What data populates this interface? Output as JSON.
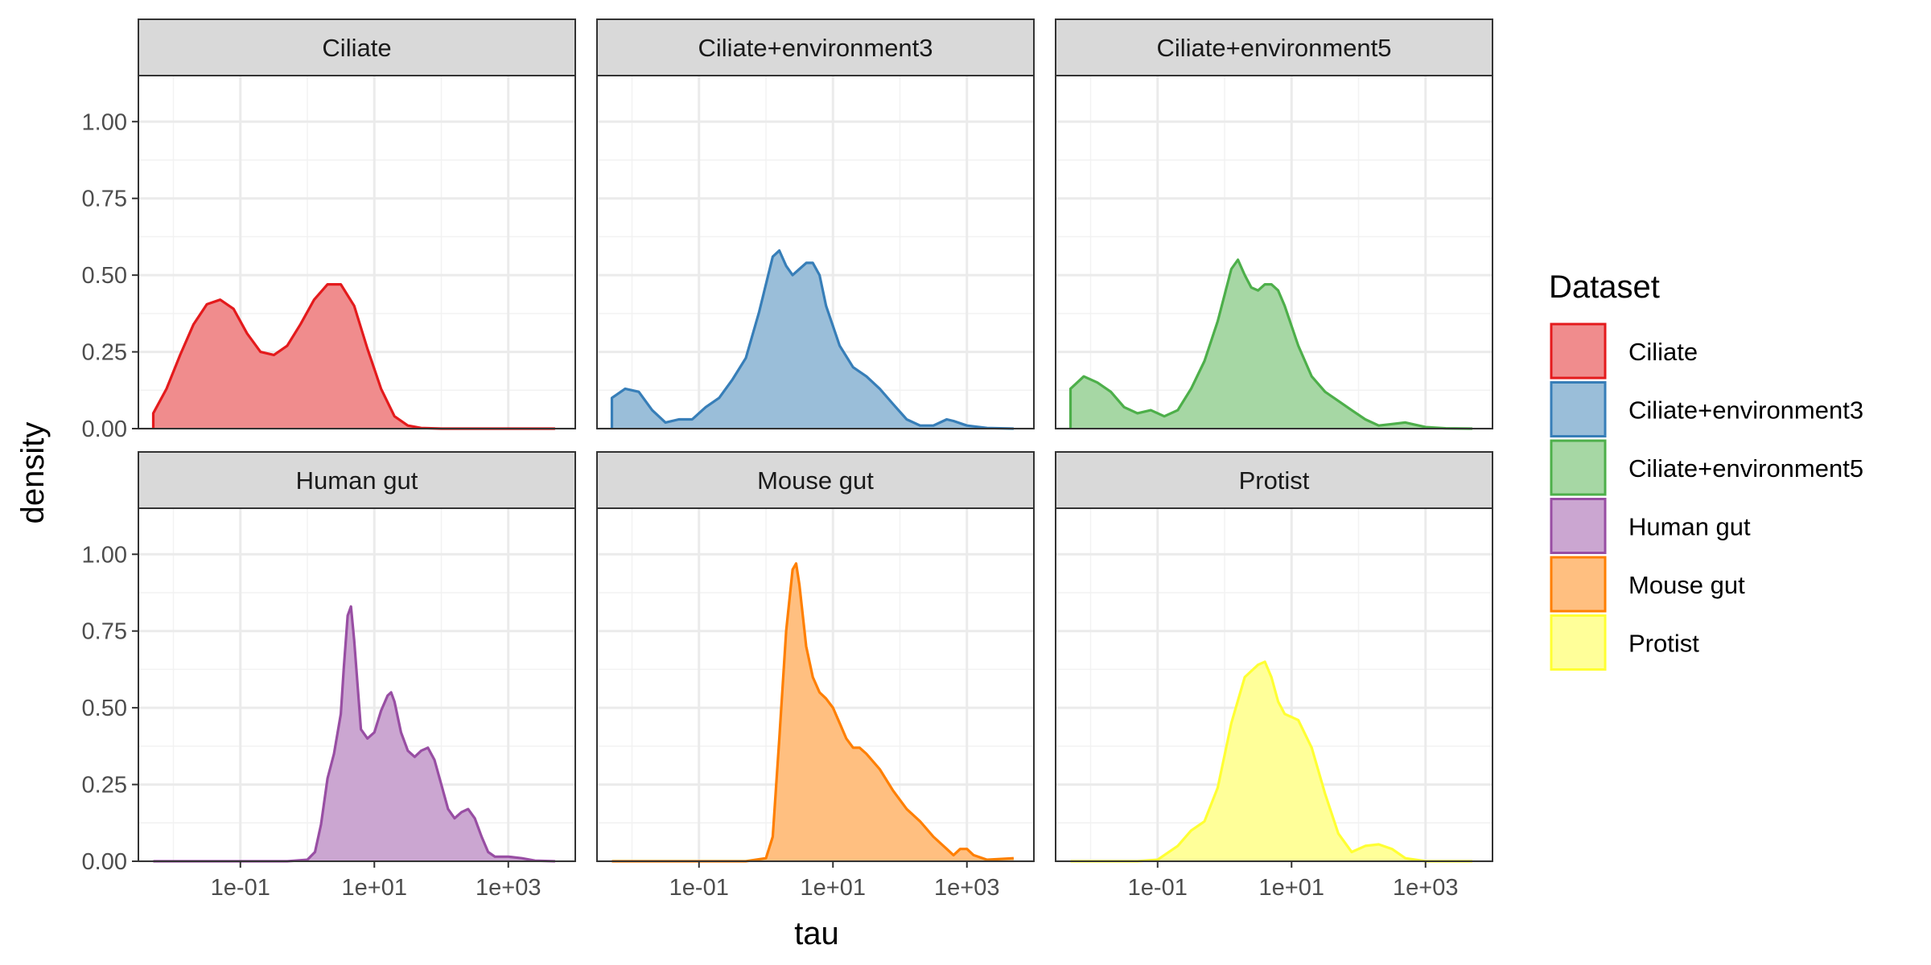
{
  "chart_data": {
    "type": "area",
    "xlabel": "tau",
    "ylabel": "density",
    "x_scale": "log10",
    "xlim": [
      0.003,
      10000
    ],
    "ylim": [
      0,
      1.15
    ],
    "x_ticks": [
      {
        "value": 0.1,
        "label": "1e-01"
      },
      {
        "value": 10,
        "label": "1e+01"
      },
      {
        "value": 1000,
        "label": "1e+03"
      }
    ],
    "y_ticks": [
      {
        "value": 0,
        "label": "0.00"
      },
      {
        "value": 0.25,
        "label": "0.25"
      },
      {
        "value": 0.5,
        "label": "0.50"
      },
      {
        "value": 0.75,
        "label": "0.75"
      },
      {
        "value": 1,
        "label": "1.00"
      }
    ],
    "grid": true,
    "legend": {
      "title": "Dataset",
      "position": "right"
    },
    "panels": [
      {
        "name": "Ciliate",
        "color": "#E41A1C",
        "fill": "#F08C8D",
        "points": [
          [
            0.005,
            0.05
          ],
          [
            0.0079,
            0.13
          ],
          [
            0.0126,
            0.24
          ],
          [
            0.02,
            0.34
          ],
          [
            0.0316,
            0.405
          ],
          [
            0.05,
            0.42
          ],
          [
            0.079,
            0.39
          ],
          [
            0.126,
            0.31
          ],
          [
            0.2,
            0.25
          ],
          [
            0.316,
            0.24
          ],
          [
            0.5,
            0.27
          ],
          [
            0.79,
            0.34
          ],
          [
            1.26,
            0.42
          ],
          [
            2,
            0.47
          ],
          [
            3.16,
            0.47
          ],
          [
            5,
            0.4
          ],
          [
            7.9,
            0.26
          ],
          [
            12.6,
            0.13
          ],
          [
            20,
            0.04
          ],
          [
            31.6,
            0.01
          ],
          [
            50,
            0.002
          ],
          [
            100,
            0.0
          ],
          [
            1000,
            0.0
          ],
          [
            5000,
            0.0
          ]
        ]
      },
      {
        "name": "Ciliate+environment3",
        "color": "#377EB8",
        "fill": "#9ABED9",
        "points": [
          [
            0.005,
            0.1
          ],
          [
            0.0079,
            0.13
          ],
          [
            0.0126,
            0.12
          ],
          [
            0.02,
            0.06
          ],
          [
            0.0316,
            0.02
          ],
          [
            0.05,
            0.03
          ],
          [
            0.079,
            0.03
          ],
          [
            0.126,
            0.07
          ],
          [
            0.2,
            0.1
          ],
          [
            0.316,
            0.16
          ],
          [
            0.5,
            0.23
          ],
          [
            0.79,
            0.38
          ],
          [
            1.26,
            0.56
          ],
          [
            1.58,
            0.58
          ],
          [
            2,
            0.53
          ],
          [
            2.5,
            0.5
          ],
          [
            3.16,
            0.52
          ],
          [
            4,
            0.54
          ],
          [
            5,
            0.54
          ],
          [
            6.3,
            0.5
          ],
          [
            7.9,
            0.4
          ],
          [
            12.6,
            0.27
          ],
          [
            20,
            0.2
          ],
          [
            31.6,
            0.17
          ],
          [
            50,
            0.13
          ],
          [
            79,
            0.08
          ],
          [
            126,
            0.03
          ],
          [
            200,
            0.01
          ],
          [
            316,
            0.01
          ],
          [
            500,
            0.03
          ],
          [
            631,
            0.025
          ],
          [
            1000,
            0.01
          ],
          [
            2000,
            0.002
          ],
          [
            5000,
            0.0
          ]
        ]
      },
      {
        "name": "Ciliate+environment5",
        "color": "#4DAF4A",
        "fill": "#A6D7A4",
        "points": [
          [
            0.005,
            0.13
          ],
          [
            0.0079,
            0.17
          ],
          [
            0.0126,
            0.15
          ],
          [
            0.02,
            0.12
          ],
          [
            0.0316,
            0.07
          ],
          [
            0.05,
            0.05
          ],
          [
            0.079,
            0.06
          ],
          [
            0.126,
            0.04
          ],
          [
            0.2,
            0.06
          ],
          [
            0.316,
            0.13
          ],
          [
            0.5,
            0.22
          ],
          [
            0.79,
            0.35
          ],
          [
            1.26,
            0.52
          ],
          [
            1.58,
            0.55
          ],
          [
            2,
            0.5
          ],
          [
            2.5,
            0.46
          ],
          [
            3.16,
            0.45
          ],
          [
            4,
            0.47
          ],
          [
            5,
            0.47
          ],
          [
            6.3,
            0.45
          ],
          [
            7.9,
            0.4
          ],
          [
            12.6,
            0.27
          ],
          [
            20,
            0.17
          ],
          [
            31.6,
            0.12
          ],
          [
            50,
            0.09
          ],
          [
            79,
            0.06
          ],
          [
            126,
            0.03
          ],
          [
            200,
            0.01
          ],
          [
            316,
            0.015
          ],
          [
            500,
            0.02
          ],
          [
            631,
            0.015
          ],
          [
            1000,
            0.005
          ],
          [
            2000,
            0.001
          ],
          [
            5000,
            0.0
          ]
        ]
      },
      {
        "name": "Human gut",
        "color": "#984EA3",
        "fill": "#CBA6D1",
        "points": [
          [
            0.005,
            0.0
          ],
          [
            0.1,
            0.0
          ],
          [
            0.5,
            0.0
          ],
          [
            1,
            0.005
          ],
          [
            1.3,
            0.03
          ],
          [
            1.6,
            0.12
          ],
          [
            2,
            0.27
          ],
          [
            2.5,
            0.35
          ],
          [
            3.16,
            0.48
          ],
          [
            3.5,
            0.63
          ],
          [
            4,
            0.8
          ],
          [
            4.47,
            0.83
          ],
          [
            5,
            0.72
          ],
          [
            6.3,
            0.43
          ],
          [
            7.9,
            0.4
          ],
          [
            10,
            0.42
          ],
          [
            12.6,
            0.49
          ],
          [
            15.8,
            0.54
          ],
          [
            17.8,
            0.55
          ],
          [
            20,
            0.52
          ],
          [
            25,
            0.42
          ],
          [
            31.6,
            0.36
          ],
          [
            40,
            0.34
          ],
          [
            50,
            0.36
          ],
          [
            63,
            0.37
          ],
          [
            79,
            0.33
          ],
          [
            100,
            0.25
          ],
          [
            126,
            0.17
          ],
          [
            158,
            0.14
          ],
          [
            200,
            0.16
          ],
          [
            251,
            0.17
          ],
          [
            316,
            0.14
          ],
          [
            400,
            0.08
          ],
          [
            500,
            0.03
          ],
          [
            631,
            0.015
          ],
          [
            1000,
            0.015
          ],
          [
            1585,
            0.01
          ],
          [
            2500,
            0.002
          ],
          [
            5000,
            0.0
          ]
        ]
      },
      {
        "name": "Mouse gut",
        "color": "#FF7F00",
        "fill": "#FFBF80",
        "points": [
          [
            0.005,
            0.0
          ],
          [
            0.1,
            0.0
          ],
          [
            0.5,
            0.0
          ],
          [
            1,
            0.01
          ],
          [
            1.26,
            0.08
          ],
          [
            1.58,
            0.4
          ],
          [
            2,
            0.75
          ],
          [
            2.5,
            0.95
          ],
          [
            2.82,
            0.97
          ],
          [
            3.16,
            0.9
          ],
          [
            3.98,
            0.7
          ],
          [
            5,
            0.6
          ],
          [
            6.3,
            0.55
          ],
          [
            7.9,
            0.53
          ],
          [
            10,
            0.5
          ],
          [
            12.6,
            0.45
          ],
          [
            15.8,
            0.4
          ],
          [
            20,
            0.37
          ],
          [
            25,
            0.37
          ],
          [
            31.6,
            0.35
          ],
          [
            50,
            0.3
          ],
          [
            79,
            0.23
          ],
          [
            126,
            0.17
          ],
          [
            200,
            0.13
          ],
          [
            316,
            0.08
          ],
          [
            500,
            0.04
          ],
          [
            631,
            0.02
          ],
          [
            794,
            0.04
          ],
          [
            1000,
            0.04
          ],
          [
            1259,
            0.02
          ],
          [
            2000,
            0.005
          ],
          [
            5000,
            0.01
          ]
        ]
      },
      {
        "name": "Protist",
        "color": "#FFFF33",
        "fill": "#FFFF99",
        "points": [
          [
            0.005,
            0.0
          ],
          [
            0.05,
            0.0
          ],
          [
            0.1,
            0.005
          ],
          [
            0.2,
            0.05
          ],
          [
            0.316,
            0.1
          ],
          [
            0.5,
            0.13
          ],
          [
            0.79,
            0.24
          ],
          [
            1.26,
            0.45
          ],
          [
            2,
            0.6
          ],
          [
            3.16,
            0.64
          ],
          [
            4,
            0.65
          ],
          [
            5,
            0.6
          ],
          [
            6.3,
            0.52
          ],
          [
            7.9,
            0.48
          ],
          [
            12.6,
            0.46
          ],
          [
            20,
            0.37
          ],
          [
            31.6,
            0.22
          ],
          [
            50,
            0.09
          ],
          [
            79,
            0.03
          ],
          [
            126,
            0.05
          ],
          [
            200,
            0.055
          ],
          [
            316,
            0.04
          ],
          [
            500,
            0.01
          ],
          [
            1000,
            0.0
          ],
          [
            5000,
            0.0
          ]
        ]
      }
    ]
  }
}
